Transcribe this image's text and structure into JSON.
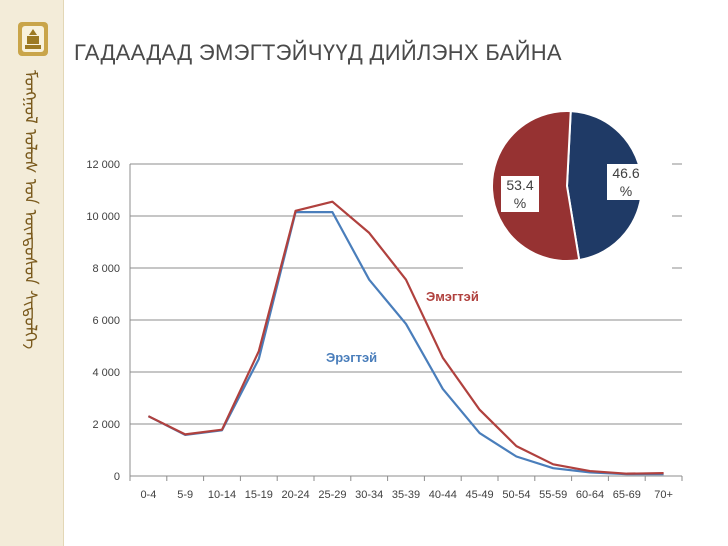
{
  "slide": {
    "title": "ГАДААДАД ЭМЭГТЭЙЧҮҮД ДИЙЛЭНХ БАЙНА",
    "sidebar_script": "ᠮᠣᠩᠭᠣᠯ ᠤᠯᠤᠰ ᠤᠨ ᠦᠨᠳᠦᠰᠦᠨ ᠰᠢᠳᠦᠯᠭᠡ"
  },
  "colors": {
    "female": "#b0413e",
    "male": "#4a7ebb",
    "pie_male": "#1f3a66",
    "pie_female": "#963232",
    "sidebar": "#f3ecd9"
  },
  "chart_data": [
    {
      "type": "line",
      "categories": [
        "0-4",
        "5-9",
        "10-14",
        "15-19",
        "20-24",
        "25-29",
        "30-34",
        "35-39",
        "40-44",
        "45-49",
        "50-54",
        "55-59",
        "60-64",
        "65-69",
        "70+"
      ],
      "series": [
        {
          "name": "Эмэгтэй",
          "values": [
            2300,
            1600,
            1780,
            4800,
            10200,
            10550,
            9350,
            7550,
            4550,
            2550,
            1150,
            450,
            190,
            90,
            110
          ]
        },
        {
          "name": "Эрэгтэй",
          "values": [
            2300,
            1580,
            1760,
            4500,
            10150,
            10150,
            7550,
            5850,
            3350,
            1650,
            750,
            300,
            140,
            70,
            70
          ]
        }
      ],
      "ylim": [
        0,
        12000
      ],
      "yticks": [
        0,
        2000,
        4000,
        6000,
        8000,
        10000,
        12000
      ],
      "ytick_labels": [
        "0",
        "2 000",
        "4 000",
        "6 000",
        "8 000",
        "10 000",
        "12 000"
      ],
      "grid": true
    },
    {
      "type": "pie",
      "slices": [
        {
          "label": "46.6\n%",
          "value": 46.6,
          "color": "#1f3a66"
        },
        {
          "label": "53.4\n%",
          "value": 53.4,
          "color": "#963232"
        }
      ]
    }
  ]
}
